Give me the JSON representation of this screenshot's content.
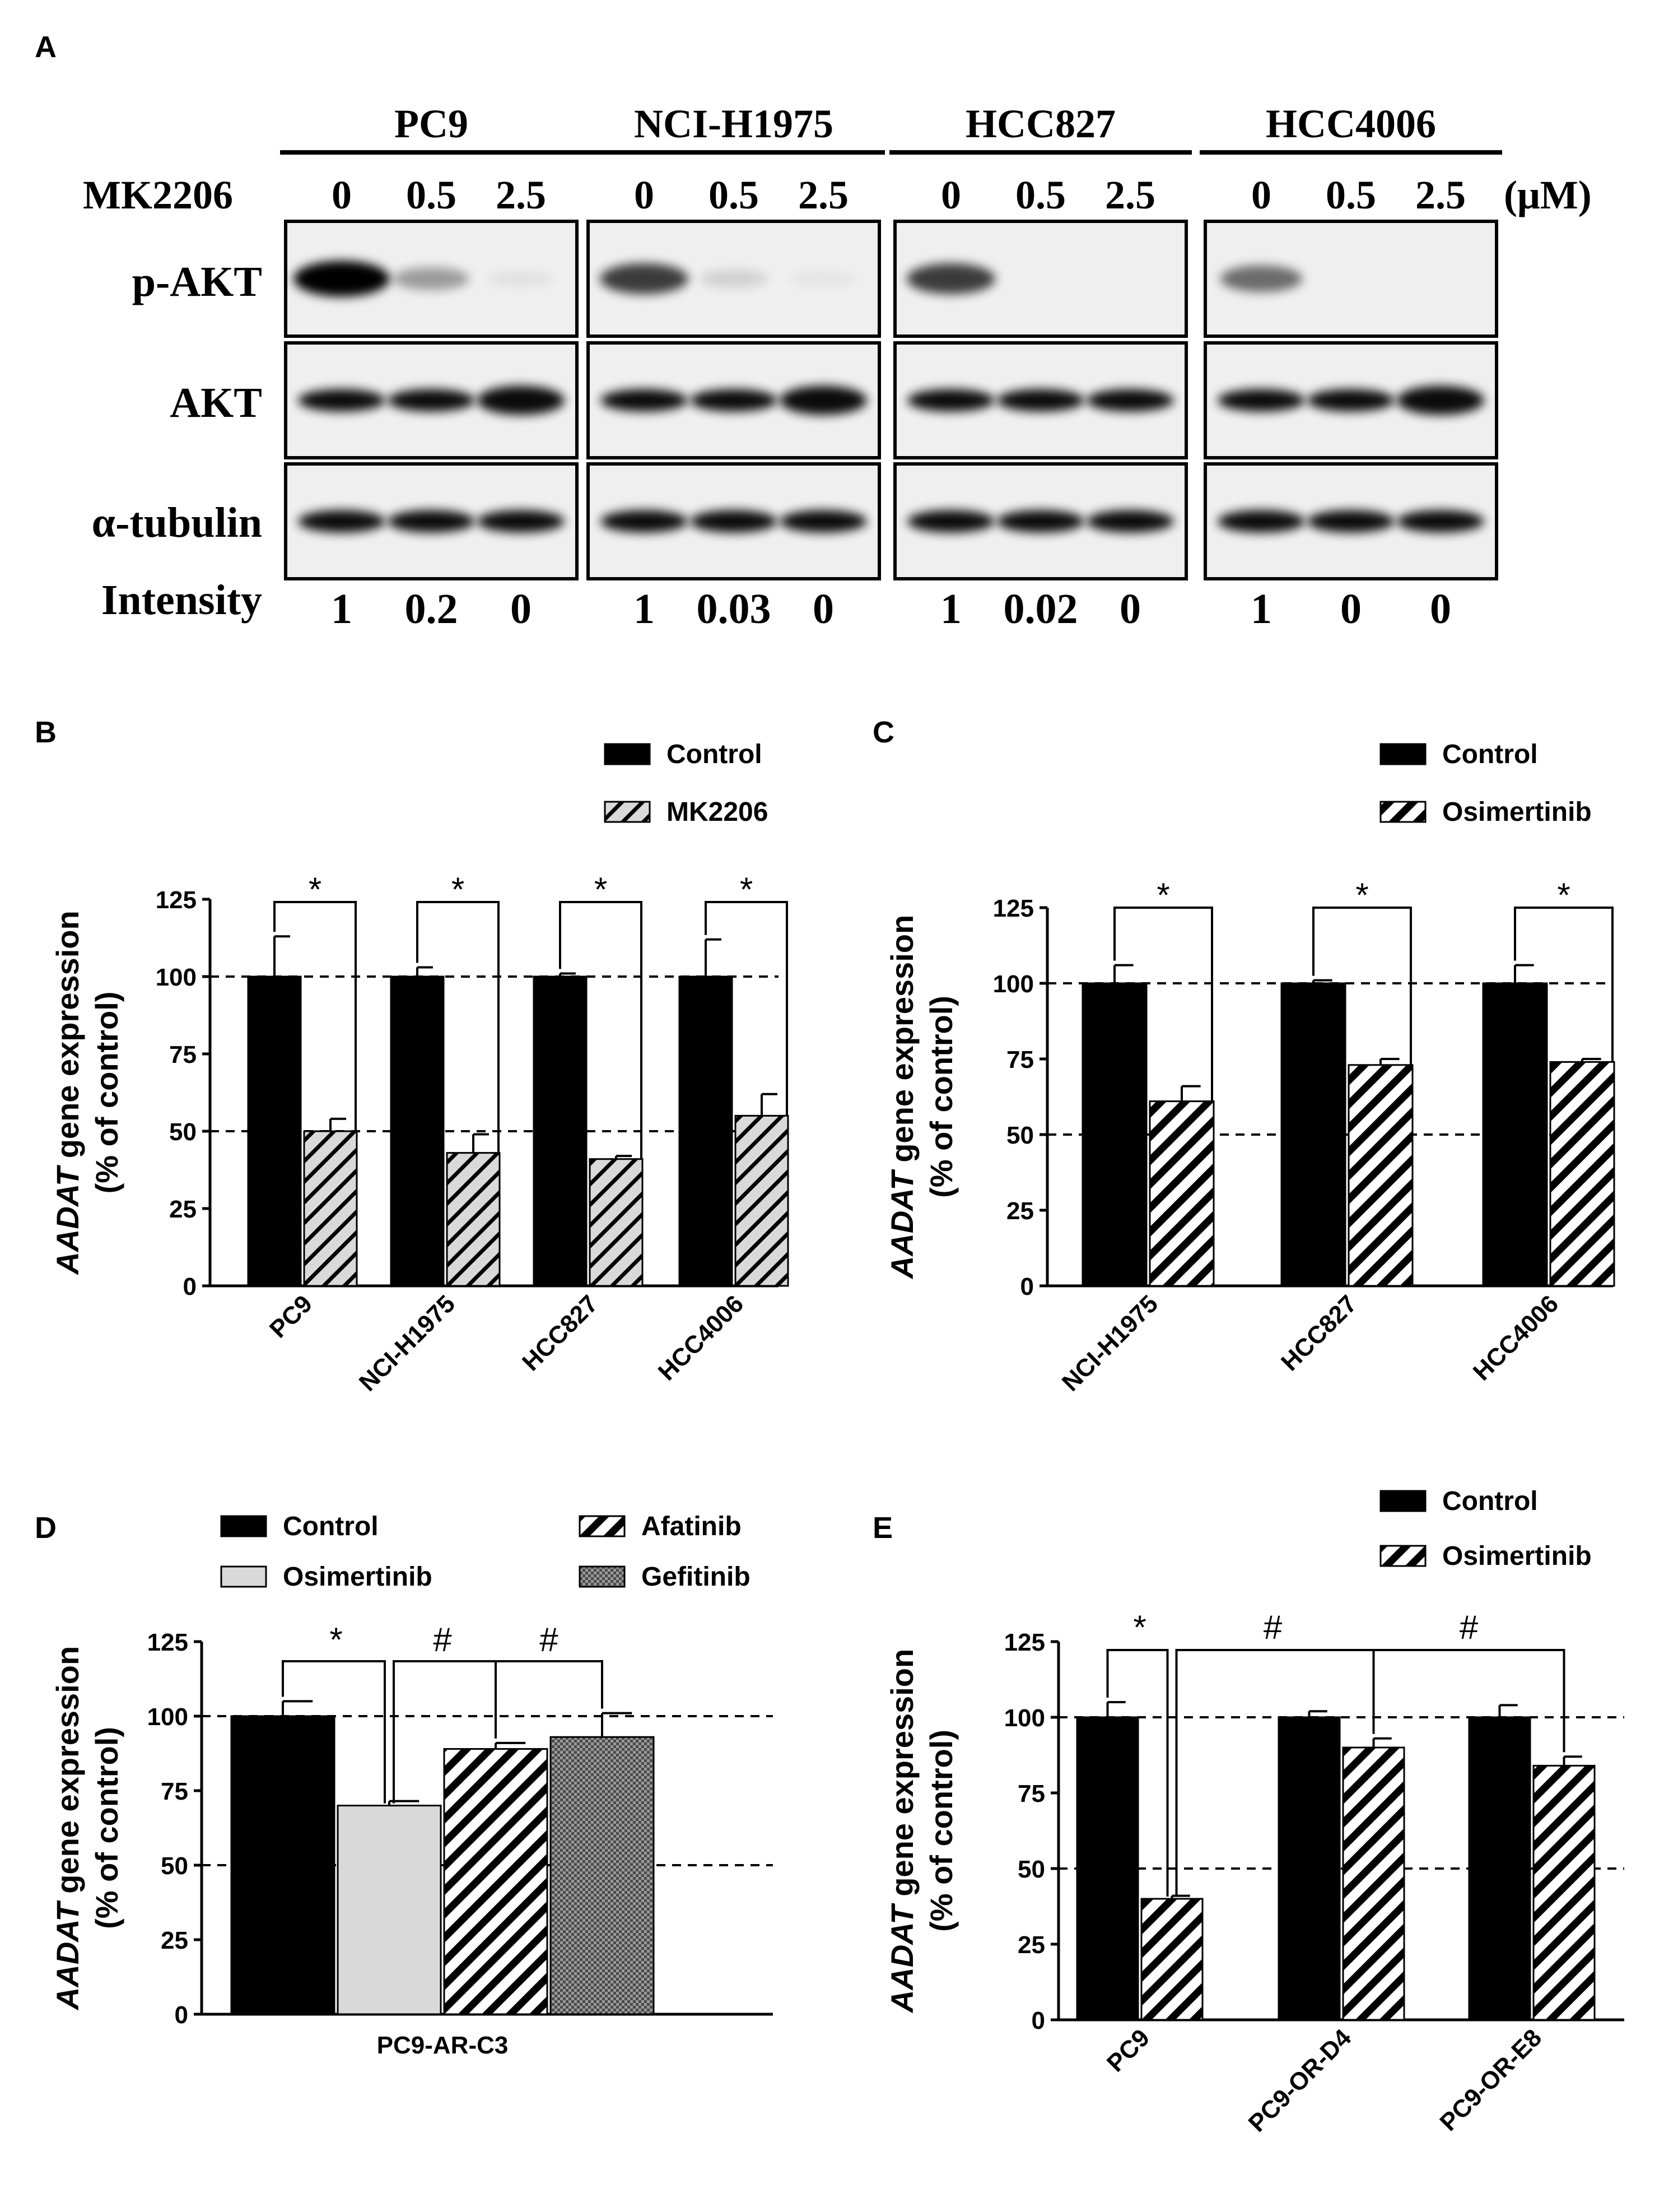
{
  "panel_a": {
    "letter": "A",
    "treatment_label": "MK2206",
    "unit": "(μM)",
    "doses": [
      "0",
      "0.5",
      "2.5"
    ],
    "row_labels": [
      "p-AKT",
      "AKT",
      "α-tubulin"
    ],
    "intensity_label": "Intensity",
    "cell_lines": [
      {
        "name": "PC9",
        "intensity": [
          "1",
          "0.2",
          "0"
        ],
        "pakt": [
          1.0,
          0.35,
          0.05
        ]
      },
      {
        "name": "NCI-H1975",
        "intensity": [
          "1",
          "0.03",
          "0"
        ],
        "pakt": [
          0.75,
          0.12,
          0.04
        ]
      },
      {
        "name": "HCC827",
        "intensity": [
          "1",
          "0.02",
          "0"
        ],
        "pakt": [
          0.75,
          0.0,
          0.0
        ]
      },
      {
        "name": "HCC4006",
        "intensity": [
          "1",
          "0",
          "0"
        ],
        "pakt": [
          0.55,
          0.0,
          0.0
        ]
      }
    ]
  },
  "colors": {
    "control": "#000000",
    "mk2206_fill": "#d9d9d9",
    "osimertinib_light": "#d9d9d9",
    "hatch": "#000000",
    "gefitinib": "#888888"
  },
  "chart_data": [
    {
      "panel": "B",
      "type": "bar",
      "ylabel_italic": "AADAT",
      "ylabel_rest": " gene expression",
      "ylabel_line2": "(% of control)",
      "ylim": [
        0,
        125
      ],
      "yticks": [
        "0",
        "25",
        "50",
        "75",
        "100",
        "125"
      ],
      "categories": [
        "PC9",
        "NCI-H1975",
        "HCC827",
        "HCC4006"
      ],
      "series": [
        {
          "name": "Control",
          "style": "solid",
          "values": [
            100,
            100,
            100,
            100
          ],
          "errors": [
            13,
            3,
            1,
            12
          ]
        },
        {
          "name": "MK2206",
          "style": "hatch-gray",
          "values": [
            50,
            43,
            41,
            55
          ],
          "errors": [
            4,
            6,
            1,
            7
          ]
        }
      ],
      "significance": [
        "*",
        "*",
        "*",
        "*"
      ]
    },
    {
      "panel": "C",
      "type": "bar",
      "ylabel_italic": "AADAT",
      "ylabel_rest": " gene expression",
      "ylabel_line2": "(% of control)",
      "ylim": [
        0,
        125
      ],
      "yticks": [
        "0",
        "25",
        "50",
        "75",
        "100",
        "125"
      ],
      "categories": [
        "NCI-H1975",
        "HCC827",
        "HCC4006"
      ],
      "series": [
        {
          "name": "Control",
          "style": "solid",
          "values": [
            100,
            100,
            100
          ],
          "errors": [
            6,
            1,
            6
          ]
        },
        {
          "name": "Osimertinib",
          "style": "hatch",
          "values": [
            61,
            73,
            74
          ],
          "errors": [
            5,
            2,
            1
          ]
        }
      ],
      "significance": [
        "*",
        "*",
        "*"
      ]
    },
    {
      "panel": "D",
      "type": "bar",
      "ylabel_italic": "AADAT",
      "ylabel_rest": " gene expression",
      "ylabel_line2": "(% of control)",
      "ylim": [
        0,
        125
      ],
      "yticks": [
        "0",
        "25",
        "50",
        "75",
        "100",
        "125"
      ],
      "categories": [
        "PC9-AR-C3"
      ],
      "series": [
        {
          "name": "Control",
          "style": "solid",
          "values": [
            100
          ],
          "errors": [
            5
          ]
        },
        {
          "name": "Osimertinib",
          "style": "light",
          "values": [
            70
          ],
          "errors": [
            1.5
          ]
        },
        {
          "name": "Afatinib",
          "style": "hatch",
          "values": [
            89
          ],
          "errors": [
            2
          ]
        },
        {
          "name": "Gefitinib",
          "style": "checker",
          "values": [
            93
          ],
          "errors": [
            8
          ]
        }
      ],
      "significance": [
        "*",
        "#",
        "#"
      ]
    },
    {
      "panel": "E",
      "type": "bar",
      "ylabel_italic": "AADAT",
      "ylabel_rest": " gene expression",
      "ylabel_line2": "(% of control)",
      "ylim": [
        0,
        125
      ],
      "yticks": [
        "0",
        "25",
        "50",
        "75",
        "100",
        "125"
      ],
      "categories": [
        "PC9",
        "PC9-OR-D4",
        "PC9-OR-E8"
      ],
      "series": [
        {
          "name": "Control",
          "style": "solid",
          "values": [
            100,
            100,
            100
          ],
          "errors": [
            5,
            2,
            4
          ]
        },
        {
          "name": "Osimertinib",
          "style": "hatch",
          "values": [
            40,
            90,
            84
          ],
          "errors": [
            1,
            3,
            3
          ]
        }
      ],
      "significance": [
        "*",
        "#",
        "#"
      ]
    }
  ]
}
